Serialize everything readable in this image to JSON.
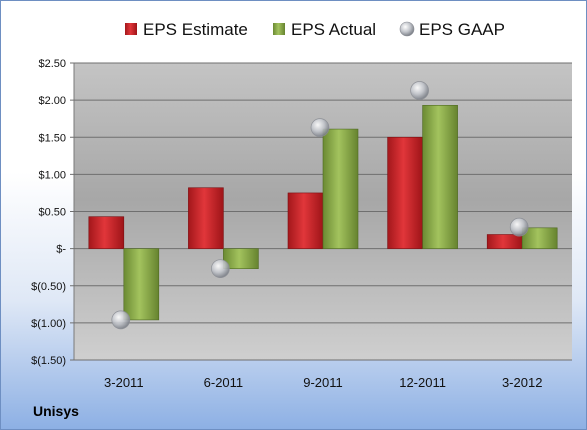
{
  "company": "Unisys",
  "chart_data": {
    "type": "bar",
    "categories": [
      "3-2011",
      "6-2011",
      "9-2011",
      "12-2011",
      "3-2012"
    ],
    "series": [
      {
        "name": "EPS Estimate",
        "kind": "bar",
        "color": "#cc2a2a",
        "values": [
          0.43,
          0.82,
          0.75,
          1.5,
          0.19
        ]
      },
      {
        "name": "EPS Actual",
        "kind": "bar",
        "color": "#8cad4a",
        "values": [
          -0.96,
          -0.27,
          1.61,
          1.93,
          0.28
        ]
      },
      {
        "name": "EPS GAAP",
        "kind": "marker",
        "color": "#b9bcc4",
        "values": [
          -0.96,
          -0.27,
          1.63,
          2.13,
          0.29
        ]
      }
    ],
    "ylim": [
      -1.5,
      2.5
    ],
    "yticks": [
      2.5,
      2.0,
      1.5,
      1.0,
      0.5,
      0,
      -0.5,
      -1.0,
      -1.5
    ],
    "ytick_labels": [
      "$2.50",
      "$2.00",
      "$1.50",
      "$1.00",
      "$0.50",
      "$-",
      "$(0.50)",
      "$(1.00)",
      "$(1.50)"
    ],
    "grid": true,
    "legend_position": "top"
  }
}
